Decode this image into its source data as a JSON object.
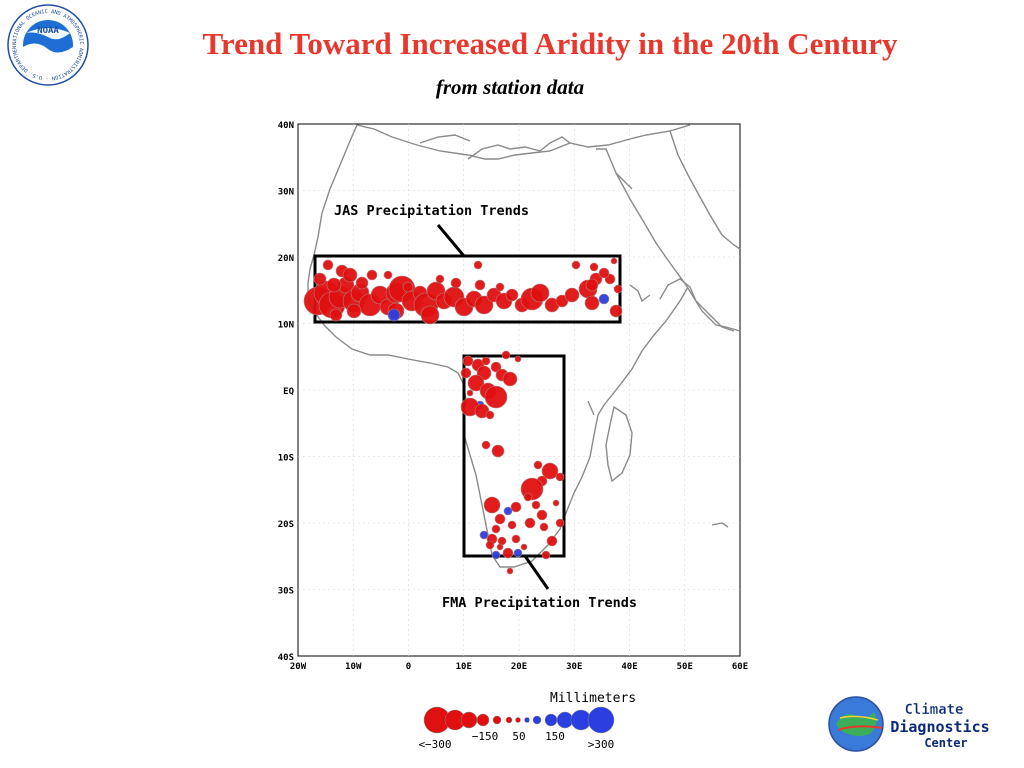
{
  "header": {
    "title": "Trend Toward Increased Aridity in the 20th Century",
    "subtitle": "from station data"
  },
  "logos": {
    "noaa": {
      "center_text": "NOAA",
      "ring_text": "NATIONAL OCEANIC AND ATMOSPHERIC ADMINISTRATION · U.S. DEPARTMENT OF COMMERCE",
      "color": "#1d6fd6"
    },
    "cdc": {
      "line1": "Climate",
      "line2": "Diagnostics",
      "line3": "Center"
    }
  },
  "map": {
    "lat_labels": [
      "40N",
      "30N",
      "20N",
      "10N",
      "EQ",
      "10S",
      "20S",
      "30S",
      "40S"
    ],
    "lon_labels": [
      "20W",
      "10W",
      "0",
      "10E",
      "20E",
      "30E",
      "40E",
      "50E",
      "60E"
    ],
    "annotations": {
      "jas": "JAS Precipitation Trends",
      "fma": "FMA Precipitation Trends"
    },
    "colors": {
      "drying": "#e01010",
      "wetting": "#2b3fe0",
      "coast": "#8a8a8a"
    }
  },
  "legend": {
    "title": "Millimeters",
    "labels": [
      "<−300",
      "−150",
      "50",
      "150",
      ">300"
    ]
  }
}
